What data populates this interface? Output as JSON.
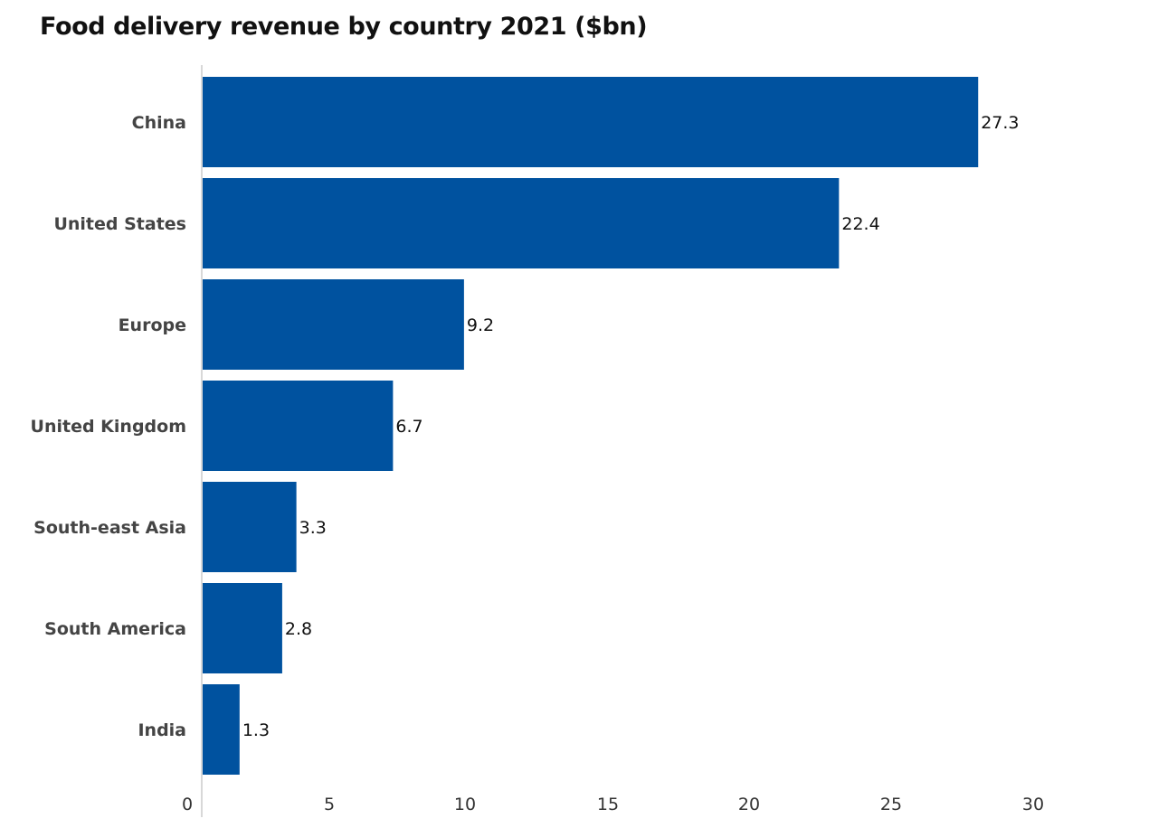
{
  "chart_data": {
    "type": "bar",
    "orientation": "horizontal",
    "title": "Food delivery revenue by country 2021 ($bn)",
    "categories": [
      "China",
      "United States",
      "Europe",
      "United Kingdom",
      "South-east Asia",
      "South America",
      "India"
    ],
    "values": [
      27.3,
      22.4,
      9.2,
      6.7,
      3.3,
      2.8,
      1.3
    ],
    "value_labels": [
      "27.3",
      "22.4",
      "9.2",
      "6.7",
      "3.3",
      "2.8",
      "1.3"
    ],
    "xlim": [
      0,
      30
    ],
    "x_ticks": [
      "0",
      "5",
      "10",
      "15",
      "20",
      "25",
      "30"
    ],
    "xlabel": "",
    "ylabel": "",
    "grid": false,
    "legend": "none",
    "bar_color": "#00529f",
    "axis_color": "#cccccc"
  }
}
